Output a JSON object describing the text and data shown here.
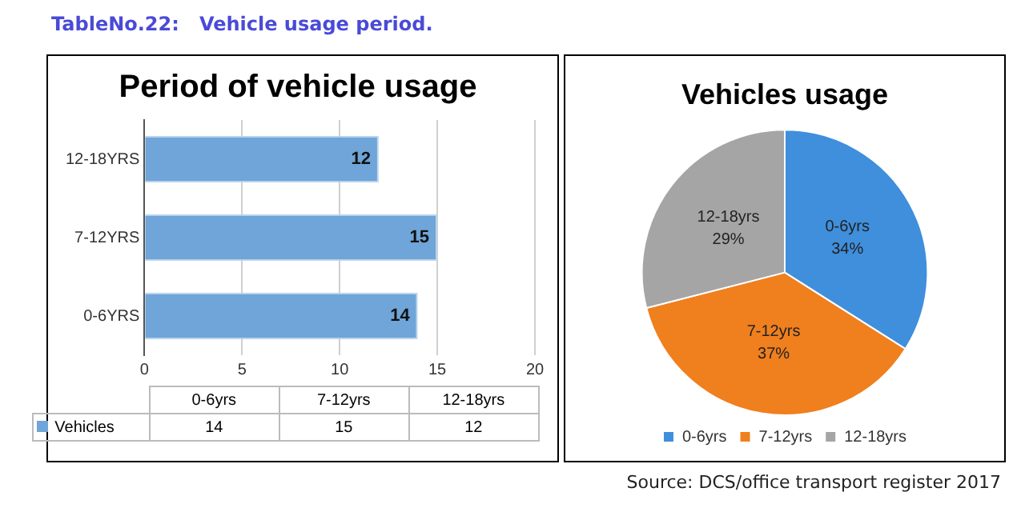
{
  "chart_data": [
    {
      "type": "bar",
      "orientation": "horizontal",
      "title": "Period of vehicle usage",
      "categories": [
        "12-18YRS",
        "7-12YRS",
        "0-6YRS"
      ],
      "series": [
        {
          "name": "Vehicles",
          "color": "#6fa5d8",
          "values": [
            12,
            15,
            14
          ]
        }
      ],
      "xlim": [
        0,
        20
      ],
      "xticks": [
        0,
        5,
        10,
        15,
        20
      ],
      "grid": "x",
      "data_labels": true,
      "legend": "bottom",
      "annotations": [
        "TableNo.22:   Vehicle usage period.",
        "0-6yrs",
        "7-12yrs",
        "12-18yrs",
        "14",
        "15",
        "12"
      ]
    },
    {
      "type": "pie",
      "title": "Vehicles usage",
      "categories": [
        "0-6yrs",
        "7-12yrs",
        "12-18yrs"
      ],
      "values": [
        34,
        37,
        29
      ],
      "colors": [
        "#3f8fdc",
        "#f07f1e",
        "#a5a5a5"
      ],
      "value_labels": [
        "34%",
        "37%",
        "29%"
      ],
      "legend": "bottom",
      "annotations": [
        "Source: DCS/office transport register 2017"
      ]
    }
  ]
}
